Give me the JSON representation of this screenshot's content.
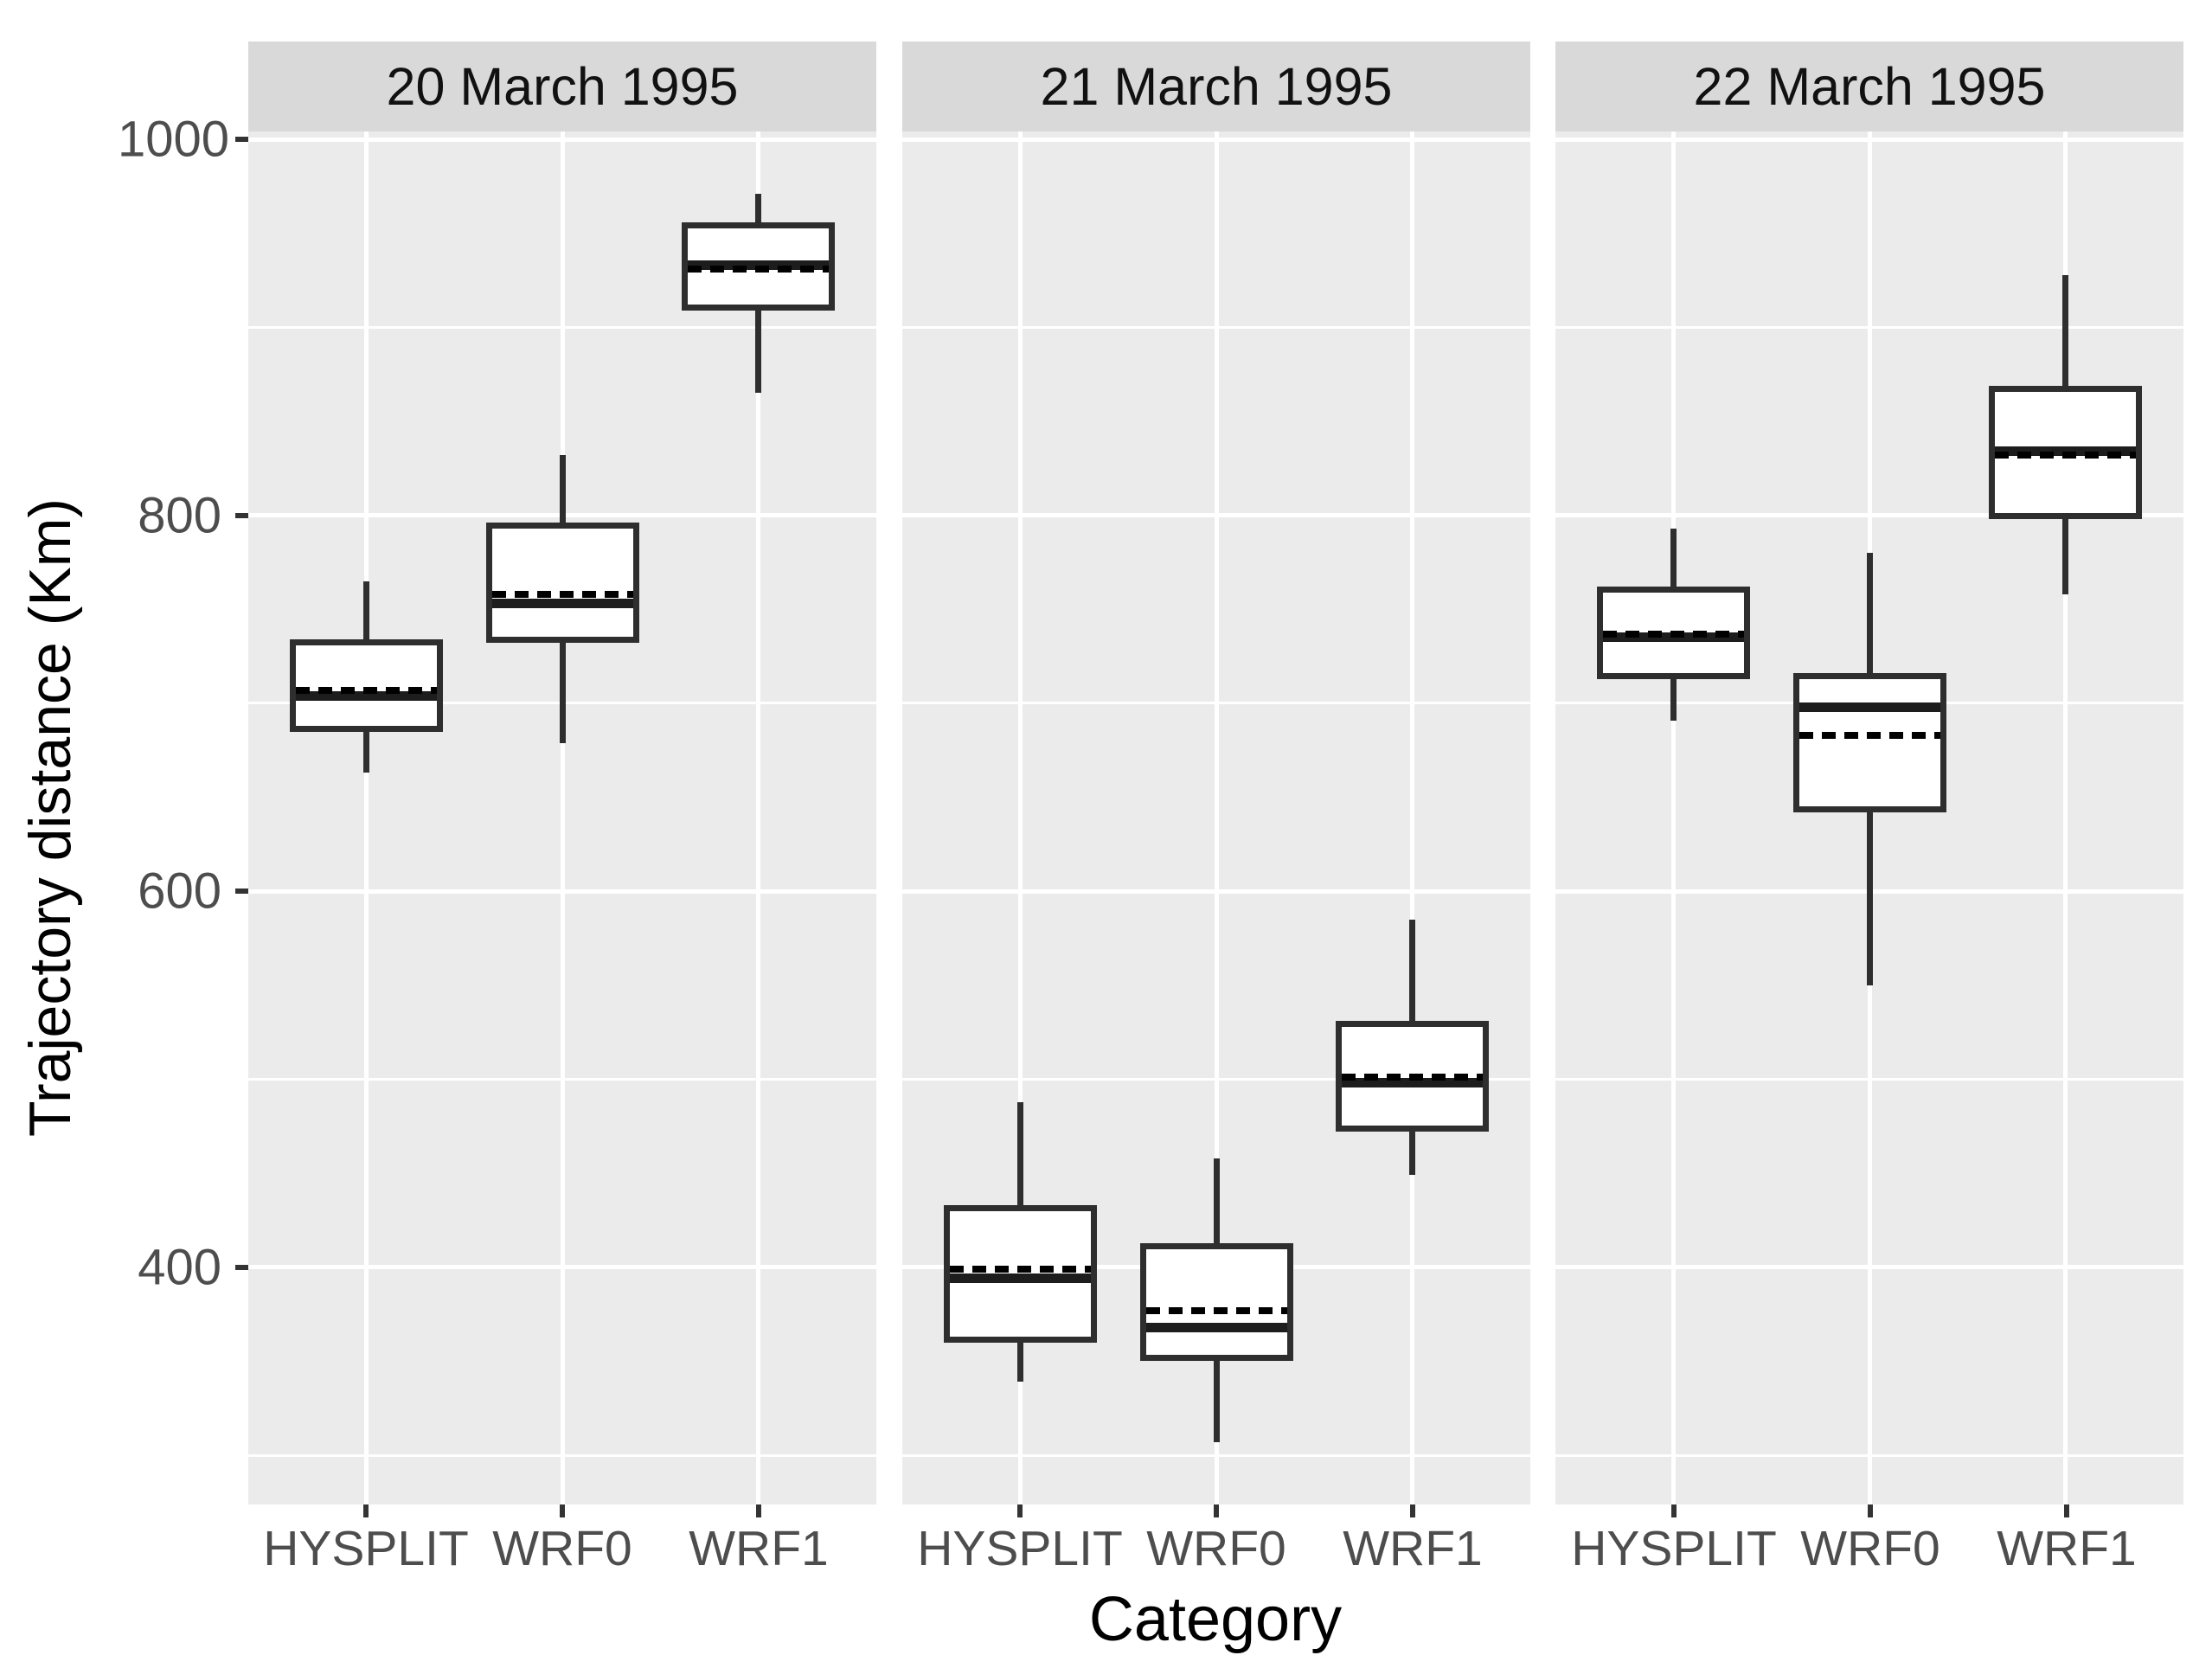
{
  "chart_data": {
    "type": "boxplot",
    "title": "",
    "xlabel": "Category",
    "ylabel": "Trajectory distance (Km)",
    "categories": [
      "HYSPLIT",
      "WRF0",
      "WRF1"
    ],
    "y_axis": {
      "ticks": [
        1000,
        800,
        600,
        400
      ],
      "major_gridlines": [
        1000,
        800,
        600,
        400
      ],
      "minor_gridlines": [
        900,
        700,
        500,
        300
      ],
      "domain": [
        273.8,
        1004.2
      ],
      "grid": "on",
      "unit": "Km"
    },
    "facets": [
      {
        "label": "20 March 1995",
        "boxes": [
          {
            "category": "HYSPLIT",
            "whisker_low": 663,
            "q1": 685,
            "median": 704,
            "mean": 707,
            "q3": 734,
            "whisker_high": 765
          },
          {
            "category": "WRF0",
            "whisker_low": 679,
            "q1": 732,
            "median": 753,
            "mean": 758,
            "q3": 796,
            "whisker_high": 832
          },
          {
            "category": "WRF1",
            "whisker_low": 865,
            "q1": 909,
            "median": 933,
            "mean": 931,
            "q3": 956,
            "whisker_high": 971
          }
        ]
      },
      {
        "label": "21 March 1995",
        "boxes": [
          {
            "category": "HYSPLIT",
            "whisker_low": 339,
            "q1": 360,
            "median": 394,
            "mean": 399,
            "q3": 433,
            "whisker_high": 488
          },
          {
            "category": "WRF0",
            "whisker_low": 307,
            "q1": 350,
            "median": 368,
            "mean": 377,
            "q3": 413,
            "whisker_high": 458
          },
          {
            "category": "WRF1",
            "whisker_low": 449,
            "q1": 472,
            "median": 498,
            "mean": 501,
            "q3": 531,
            "whisker_high": 585
          }
        ]
      },
      {
        "label": "22 March 1995",
        "boxes": [
          {
            "category": "HYSPLIT",
            "whisker_low": 691,
            "q1": 713,
            "median": 735,
            "mean": 737,
            "q3": 762,
            "whisker_high": 793
          },
          {
            "category": "WRF0",
            "whisker_low": 550,
            "q1": 642,
            "median": 698,
            "mean": 683,
            "q3": 716,
            "whisker_high": 780
          },
          {
            "category": "WRF1",
            "whisker_low": 758,
            "q1": 798,
            "median": 834,
            "mean": 832,
            "q3": 869,
            "whisker_high": 928
          }
        ]
      }
    ],
    "style": {
      "panel_bg": "#ebebeb",
      "strip_bg": "#d9d9d9",
      "gridline_color": "#ffffff",
      "box_border_color": "#2e2e2e",
      "median_color": "#1d1d1d",
      "mean_dash_color": "#000000",
      "tick_label_color": "#4d4d4d",
      "axis_title_color": "#000000",
      "median_style": "solid",
      "mean_style": "dashed",
      "legend": "none"
    }
  }
}
